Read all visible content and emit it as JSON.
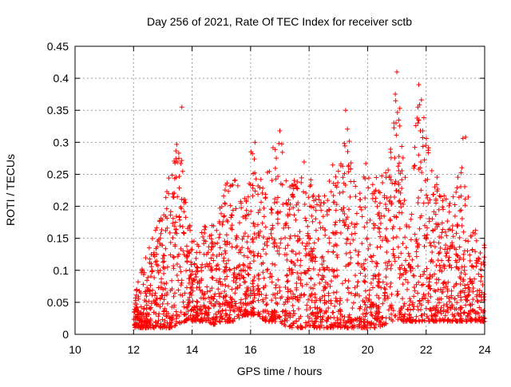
{
  "chart_data": {
    "type": "scatter",
    "title": "Day 256 of 2021, Rate Of TEC Index for receiver sctb",
    "xlabel": "GPS time / hours",
    "ylabel": "ROTI / TECUs",
    "xlim": [
      10,
      24
    ],
    "ylim": [
      0,
      0.45
    ],
    "x_ticks": [
      "10",
      "12",
      "14",
      "16",
      "18",
      "20",
      "22",
      "24"
    ],
    "y_ticks": [
      "0",
      "0.05",
      "0.1",
      "0.15",
      "0.2",
      "0.25",
      "0.3",
      "0.35",
      "0.4",
      "0.45"
    ],
    "grid": true,
    "marker": "+",
    "color": "#ff0000",
    "envelope_note_hours": [
      12.0,
      24.0
    ],
    "envelope": {
      "x": [
        12.0,
        12.25,
        12.5,
        12.75,
        13.0,
        13.25,
        13.5,
        13.75,
        14.0,
        14.25,
        14.5,
        14.75,
        15.0,
        15.25,
        15.5,
        15.75,
        16.0,
        16.25,
        16.5,
        16.75,
        17.0,
        17.25,
        17.5,
        17.75,
        18.0,
        18.25,
        18.5,
        18.75,
        19.0,
        19.25,
        19.5,
        19.75,
        20.0,
        20.25,
        20.5,
        20.75,
        21.0,
        21.25,
        21.5,
        21.75,
        22.0,
        22.25,
        22.5,
        22.75,
        23.0,
        23.25,
        23.5,
        23.75,
        24.0
      ],
      "upper": [
        0.06,
        0.1,
        0.13,
        0.17,
        0.2,
        0.26,
        0.35,
        0.22,
        0.15,
        0.16,
        0.18,
        0.17,
        0.21,
        0.25,
        0.24,
        0.23,
        0.3,
        0.25,
        0.24,
        0.29,
        0.32,
        0.27,
        0.24,
        0.29,
        0.25,
        0.22,
        0.21,
        0.27,
        0.26,
        0.35,
        0.26,
        0.24,
        0.28,
        0.25,
        0.26,
        0.27,
        0.41,
        0.26,
        0.24,
        0.39,
        0.33,
        0.26,
        0.24,
        0.21,
        0.22,
        0.31,
        0.19,
        0.16,
        0.15
      ],
      "lower": [
        0.01,
        0.01,
        0.01,
        0.01,
        0.01,
        0.01,
        0.015,
        0.02,
        0.02,
        0.02,
        0.02,
        0.015,
        0.02,
        0.02,
        0.02,
        0.03,
        0.03,
        0.03,
        0.02,
        0.02,
        0.02,
        0.01,
        0.01,
        0.01,
        0.01,
        0.01,
        0.01,
        0.01,
        0.01,
        0.01,
        0.01,
        0.01,
        0.01,
        0.01,
        0.01,
        0.02,
        0.02,
        0.02,
        0.02,
        0.02,
        0.02,
        0.02,
        0.02,
        0.02,
        0.02,
        0.02,
        0.02,
        0.02,
        0.02
      ]
    },
    "peaks": [
      {
        "x": 13.65,
        "y": 0.355
      },
      {
        "x": 16.15,
        "y": 0.3
      },
      {
        "x": 17.0,
        "y": 0.318
      },
      {
        "x": 19.25,
        "y": 0.35
      },
      {
        "x": 21.0,
        "y": 0.41
      },
      {
        "x": 21.1,
        "y": 0.353
      },
      {
        "x": 21.75,
        "y": 0.39
      },
      {
        "x": 21.75,
        "y": 0.335
      },
      {
        "x": 23.35,
        "y": 0.308
      }
    ]
  }
}
